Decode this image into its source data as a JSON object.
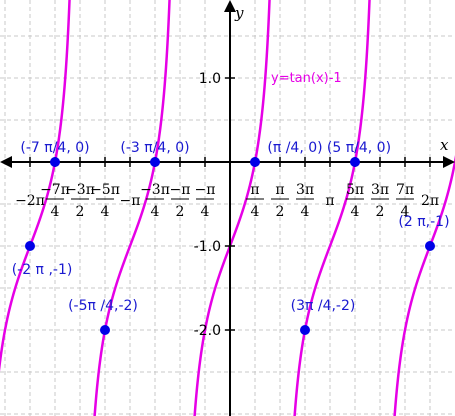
{
  "chart_data": {
    "type": "line",
    "title": "",
    "xlabel": "x",
    "ylabel": "y",
    "xlim": [
      -7.1,
      7.05
    ],
    "ylim": [
      -2.7,
      2.35
    ],
    "grid": true,
    "series": [
      {
        "name": "y=tan(x)-1",
        "color": "#e600e6",
        "function": "tan(x)-1"
      }
    ],
    "x_ticks": [
      {
        "value": -6.2832,
        "label": "−2π"
      },
      {
        "value": -5.4978,
        "label": "−7π/4"
      },
      {
        "value": -4.7124,
        "label": "−3π/2"
      },
      {
        "value": -3.927,
        "label": "−5π/4"
      },
      {
        "value": -3.1416,
        "label": "−π"
      },
      {
        "value": -2.3562,
        "label": "−3π/4"
      },
      {
        "value": -1.5708,
        "label": "−π/2"
      },
      {
        "value": -0.7854,
        "label": "−π/4"
      },
      {
        "value": 0.7854,
        "label": "π/4"
      },
      {
        "value": 1.5708,
        "label": "π/2"
      },
      {
        "value": 2.3562,
        "label": "3π/4"
      },
      {
        "value": 3.1416,
        "label": "π"
      },
      {
        "value": 3.927,
        "label": "5π/4"
      },
      {
        "value": 4.7124,
        "label": "3π/2"
      },
      {
        "value": 5.4978,
        "label": "7π/4"
      },
      {
        "value": 6.2832,
        "label": "2π"
      }
    ],
    "y_ticks": [
      {
        "value": 1,
        "label": "1.0"
      },
      {
        "value": -1,
        "label": "-1.0"
      },
      {
        "value": -2,
        "label": "-2.0"
      }
    ],
    "points": [
      {
        "x": -5.4978,
        "y": 0,
        "label": "(-7 π/4, 0)"
      },
      {
        "x": -2.3562,
        "y": 0,
        "label": "(-3 π/4, 0)"
      },
      {
        "x": 0.7854,
        "y": 0,
        "label": "(π /4, 0)"
      },
      {
        "x": 3.927,
        "y": 0,
        "label": "(5 π/4, 0)"
      },
      {
        "x": -6.2832,
        "y": -1,
        "label": "(-2 π ,-1)"
      },
      {
        "x": 6.2832,
        "y": -1,
        "label": "(2 π,-1)"
      },
      {
        "x": -3.927,
        "y": -2,
        "label": "(-5π /4,-2)"
      },
      {
        "x": 2.3562,
        "y": -2,
        "label": "(3π /4,-2)"
      }
    ]
  }
}
